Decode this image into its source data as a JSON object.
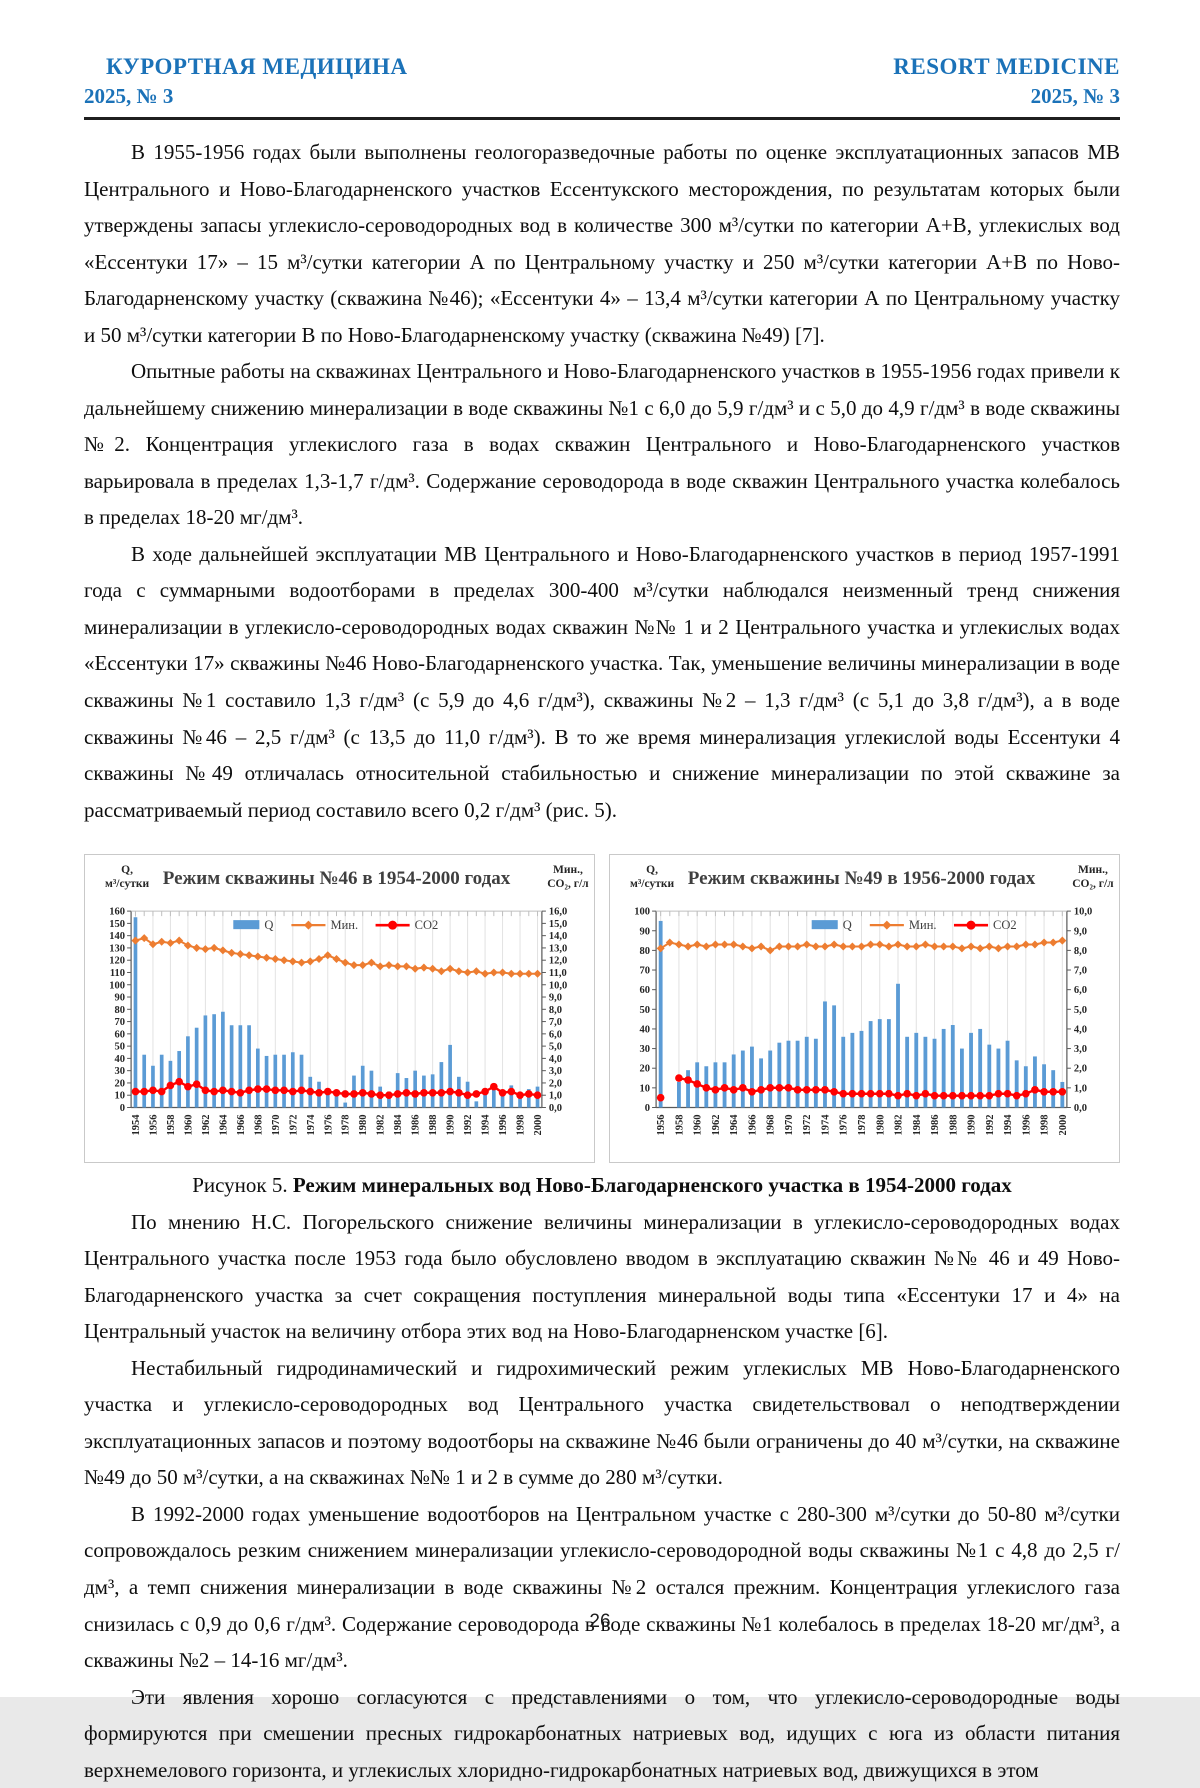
{
  "header": {
    "left_title": "КУРОРТНАЯ МЕДИЦИНА",
    "left_issue": "2025, № 3",
    "right_title": "RESORT MEDICINE",
    "right_issue": "2025, № 3",
    "accent_color": "#1b72b8"
  },
  "paragraphs": [
    "В 1955-1956 годах были выполнены геологоразведочные работы по оценке эксплуатационных запасов МВ Центрального и Ново-Благодарненского участков Ессентукского месторождения, по результатам которых были утверждены запасы углекисло-сероводородных вод в количестве 300 м³/сутки по категории А+В, углекислых вод «Ессентуки 17» – 15 м³/сутки категории А по Центральному участку и 250 м³/сутки категории А+В по Ново-Благодарненскому участку (скважина №46); «Ессентуки 4» – 13,4 м³/сутки категории А по Центральному участку и 50 м³/сутки категории В по Ново-Благодарненскому участку (скважина №49) [7].",
    "Опытные работы на скважинах Центрального и Ново-Благодарненского участков в 1955-1956 годах привели к дальнейшему снижению минерализации в воде скважины №1 с 6,0 до 5,9 г/дм³ и с 5,0 до 4,9 г/дм³ в воде скважины №2. Концентрация углекислого газа в водах скважин Центрального и Ново-Благодарненского участков варьировала в пределах 1,3-1,7 г/дм³. Содержание сероводорода в воде скважин Центрального участка колебалось в пределах 18-20 мг/дм³.",
    "В ходе дальнейшей эксплуатации МВ Центрального и Ново-Благодарненского участков в период 1957-1991 года с суммарными водоотборами в пределах 300-400 м³/сутки наблюдался неизменный тренд снижения минерализации в углекисло-сероводородных водах скважин №№ 1 и 2 Центрального участка и углекислых водах «Ессентуки 17» скважины №46 Ново-Благодарненского участка. Так, уменьшение величины минерализации в воде скважины №1 составило 1,3 г/дм³ (с 5,9 до 4,6 г/дм³), скважины №2 – 1,3 г/дм³ (с 5,1 до 3,8 г/дм³), а в воде скважины №46 – 2,5 г/дм³ (с 13,5 до 11,0 г/дм³). В то же время минерализация углекислой воды Ессентуки 4 скважины №49 отличалась относительной стабильностью и снижение минерализации по этой скважине за рассматриваемый период составило всего 0,2 г/дм³ (рис. 5).",
    "По мнению Н.С. Погорельского снижение величины минерализации в углекисло-сероводородных водах Центрального участка после 1953 года было обусловлено вводом в эксплуатацию скважин №№ 46 и 49 Ново-Благодарненского участка за счет сокращения поступления минеральной воды типа «Ессентуки 17 и 4» на Центральный участок на величину отбора этих вод на Ново-Благодарненском участке [6].",
    "Нестабильный гидродинамический и гидрохимический режим углекислых МВ Ново-Благодарненского участка и углекисло-сероводородных вод Центрального участка свидетельствовал о неподтверждении эксплуатационных запасов и поэтому водоотборы на скважине №46 были ограничены до 40 м³/сутки, на скважине №49 до 50 м³/сутки, а на скважинах №№ 1 и 2 в сумме до 280 м³/сутки.",
    "В 1992-2000 годах уменьшение водоотборов на Центральном участке с 280-300 м³/сутки до 50-80 м³/сутки сопровождалось резким снижением минерализации углекисло-сероводородной воды скважины №1 с 4,8 до 2,5 г/дм³, а темп снижения минерализации в воде скважины №2 остался прежним. Концентрация углекислого газа снизилась с 0,9 до 0,6 г/дм³. Содержание сероводорода в воде скважины №1 колебалось в пределах 18-20 мг/дм³, а скважины №2 – 14-16 мг/дм³.",
    "Эти явления хорошо согласуются с представлениями о том, что углекисло-сероводородные воды формируются при смешении пресных гидрокарбонатных натриевых вод, идущих с юга из области питания верхнемелового горизонта, и углекислых хлоридно-гидрокарбонатных натриевых вод, движущихся в этом"
  ],
  "figure": {
    "caption_prefix": "Рисунок 5. ",
    "caption_bold": "Режим минеральных вод Ново-Благодарненского участка в 1954-2000 годах"
  },
  "page_number": "26",
  "chart_data": [
    {
      "type": "bar",
      "title": "Режим скважины №46 в 1954-2000 годах",
      "left_axis_label": [
        "Q,",
        "м³/сутки"
      ],
      "right_axis_label": [
        "Мин.,",
        "СО₂, г/л"
      ],
      "left_ylim": [
        0,
        160
      ],
      "left_tick_step": 10,
      "right_ylim": [
        0,
        16
      ],
      "right_tick_step": 1,
      "x_start": 1954,
      "x_end": 2000,
      "x_label_every": 2,
      "grid": true,
      "legend_position": "top-center",
      "legend_x_frac": 0.5,
      "legend": [
        {
          "label": "Q",
          "color": "#5B9BD5",
          "kind": "bar"
        },
        {
          "label": "Мин.",
          "color": "#ED7D31",
          "kind": "line-diamond"
        },
        {
          "label": "CO2",
          "color": "#FF0000",
          "kind": "line-dot"
        }
      ],
      "series": [
        {
          "name": "Q",
          "kind": "bar",
          "axis": "left",
          "color": "#5B9BD5",
          "values": [
            155,
            43,
            34,
            43,
            38,
            46,
            58,
            65,
            75,
            76,
            78,
            67,
            67,
            67,
            48,
            42,
            43,
            43,
            45,
            43,
            25,
            21,
            13,
            12,
            4,
            26,
            34,
            30,
            17,
            13,
            28,
            24,
            30,
            26,
            27,
            37,
            51,
            25,
            21,
            5,
            12,
            19,
            14,
            18,
            10,
            15,
            17
          ]
        },
        {
          "name": "Мин.",
          "kind": "line-diamond",
          "axis": "right",
          "color": "#ED7D31",
          "values": [
            13.6,
            13.8,
            13.3,
            13.5,
            13.4,
            13.6,
            13.2,
            13.0,
            12.9,
            13.0,
            12.8,
            12.6,
            12.5,
            12.4,
            12.3,
            12.2,
            12.1,
            12.0,
            11.9,
            11.8,
            11.9,
            12.1,
            12.4,
            12.1,
            11.8,
            11.6,
            11.6,
            11.8,
            11.5,
            11.6,
            11.5,
            11.5,
            11.3,
            11.4,
            11.3,
            11.1,
            11.3,
            11.1,
            11.0,
            11.1,
            10.9,
            11.0,
            11.0,
            10.9,
            10.9,
            10.9,
            10.9
          ]
        },
        {
          "name": "CO2",
          "kind": "line-dot",
          "axis": "right",
          "color": "#FF0000",
          "values": [
            1.3,
            1.3,
            1.4,
            1.3,
            1.8,
            2.1,
            1.7,
            1.9,
            1.4,
            1.3,
            1.4,
            1.3,
            1.2,
            1.4,
            1.5,
            1.5,
            1.4,
            1.4,
            1.3,
            1.4,
            1.3,
            1.2,
            1.3,
            1.2,
            1.1,
            1.1,
            1.2,
            1.1,
            1.0,
            1.0,
            1.1,
            1.2,
            1.1,
            1.2,
            1.2,
            1.2,
            1.3,
            1.2,
            1.0,
            1.1,
            1.3,
            1.7,
            1.2,
            1.3,
            1.0,
            1.1,
            1.0
          ]
        }
      ]
    },
    {
      "type": "bar",
      "title": "Режим скважины №49 в 1956-2000 годах",
      "left_axis_label": [
        "Q,",
        "м³/сутки"
      ],
      "right_axis_label": [
        "Мин.,",
        "СО₂, г/л"
      ],
      "left_ylim": [
        0,
        100
      ],
      "left_tick_step": 10,
      "right_ylim": [
        0,
        10
      ],
      "right_tick_step": 1,
      "x_start": 1956,
      "x_end": 2000,
      "x_label_every": 2,
      "grid": true,
      "legend_position": "top-right",
      "legend_x_frac": 0.63,
      "legend": [
        {
          "label": "Q",
          "color": "#5B9BD5",
          "kind": "bar"
        },
        {
          "label": "Мин.",
          "color": "#ED7D31",
          "kind": "line-diamond"
        },
        {
          "label": "CO2",
          "color": "#FF0000",
          "kind": "line-dot"
        }
      ],
      "series": [
        {
          "name": "Q",
          "kind": "bar",
          "axis": "left",
          "color": "#5B9BD5",
          "values": [
            95,
            0,
            13,
            19,
            23,
            21,
            23,
            23,
            27,
            29,
            31,
            25,
            29,
            33,
            34,
            34,
            36,
            35,
            54,
            52,
            36,
            38,
            39,
            44,
            45,
            45,
            63,
            36,
            38,
            36,
            35,
            40,
            42,
            30,
            38,
            40,
            32,
            30,
            34,
            24,
            21,
            26,
            22,
            19,
            13
          ]
        },
        {
          "name": "Мин.",
          "kind": "line-diamond",
          "axis": "right",
          "color": "#ED7D31",
          "values": [
            8.1,
            8.4,
            8.3,
            8.2,
            8.3,
            8.2,
            8.3,
            8.3,
            8.3,
            8.2,
            8.1,
            8.2,
            8.0,
            8.2,
            8.2,
            8.2,
            8.3,
            8.2,
            8.2,
            8.3,
            8.2,
            8.2,
            8.2,
            8.3,
            8.3,
            8.2,
            8.3,
            8.2,
            8.2,
            8.3,
            8.2,
            8.2,
            8.2,
            8.1,
            8.2,
            8.1,
            8.2,
            8.1,
            8.2,
            8.2,
            8.3,
            8.3,
            8.4,
            8.4,
            8.5
          ]
        },
        {
          "name": "CO2",
          "kind": "line-dot",
          "axis": "right",
          "color": "#FF0000",
          "values": [
            0.5,
            null,
            1.5,
            1.4,
            1.2,
            1.0,
            0.9,
            1.0,
            0.9,
            1.0,
            0.8,
            0.9,
            1.0,
            1.0,
            1.0,
            0.9,
            0.9,
            0.9,
            0.9,
            0.8,
            0.7,
            0.7,
            0.7,
            0.7,
            0.7,
            0.7,
            0.6,
            0.7,
            0.6,
            0.7,
            0.6,
            0.6,
            0.6,
            0.6,
            0.6,
            0.6,
            0.6,
            0.7,
            0.7,
            0.6,
            0.7,
            0.9,
            0.8,
            0.8,
            0.8
          ]
        }
      ]
    }
  ]
}
